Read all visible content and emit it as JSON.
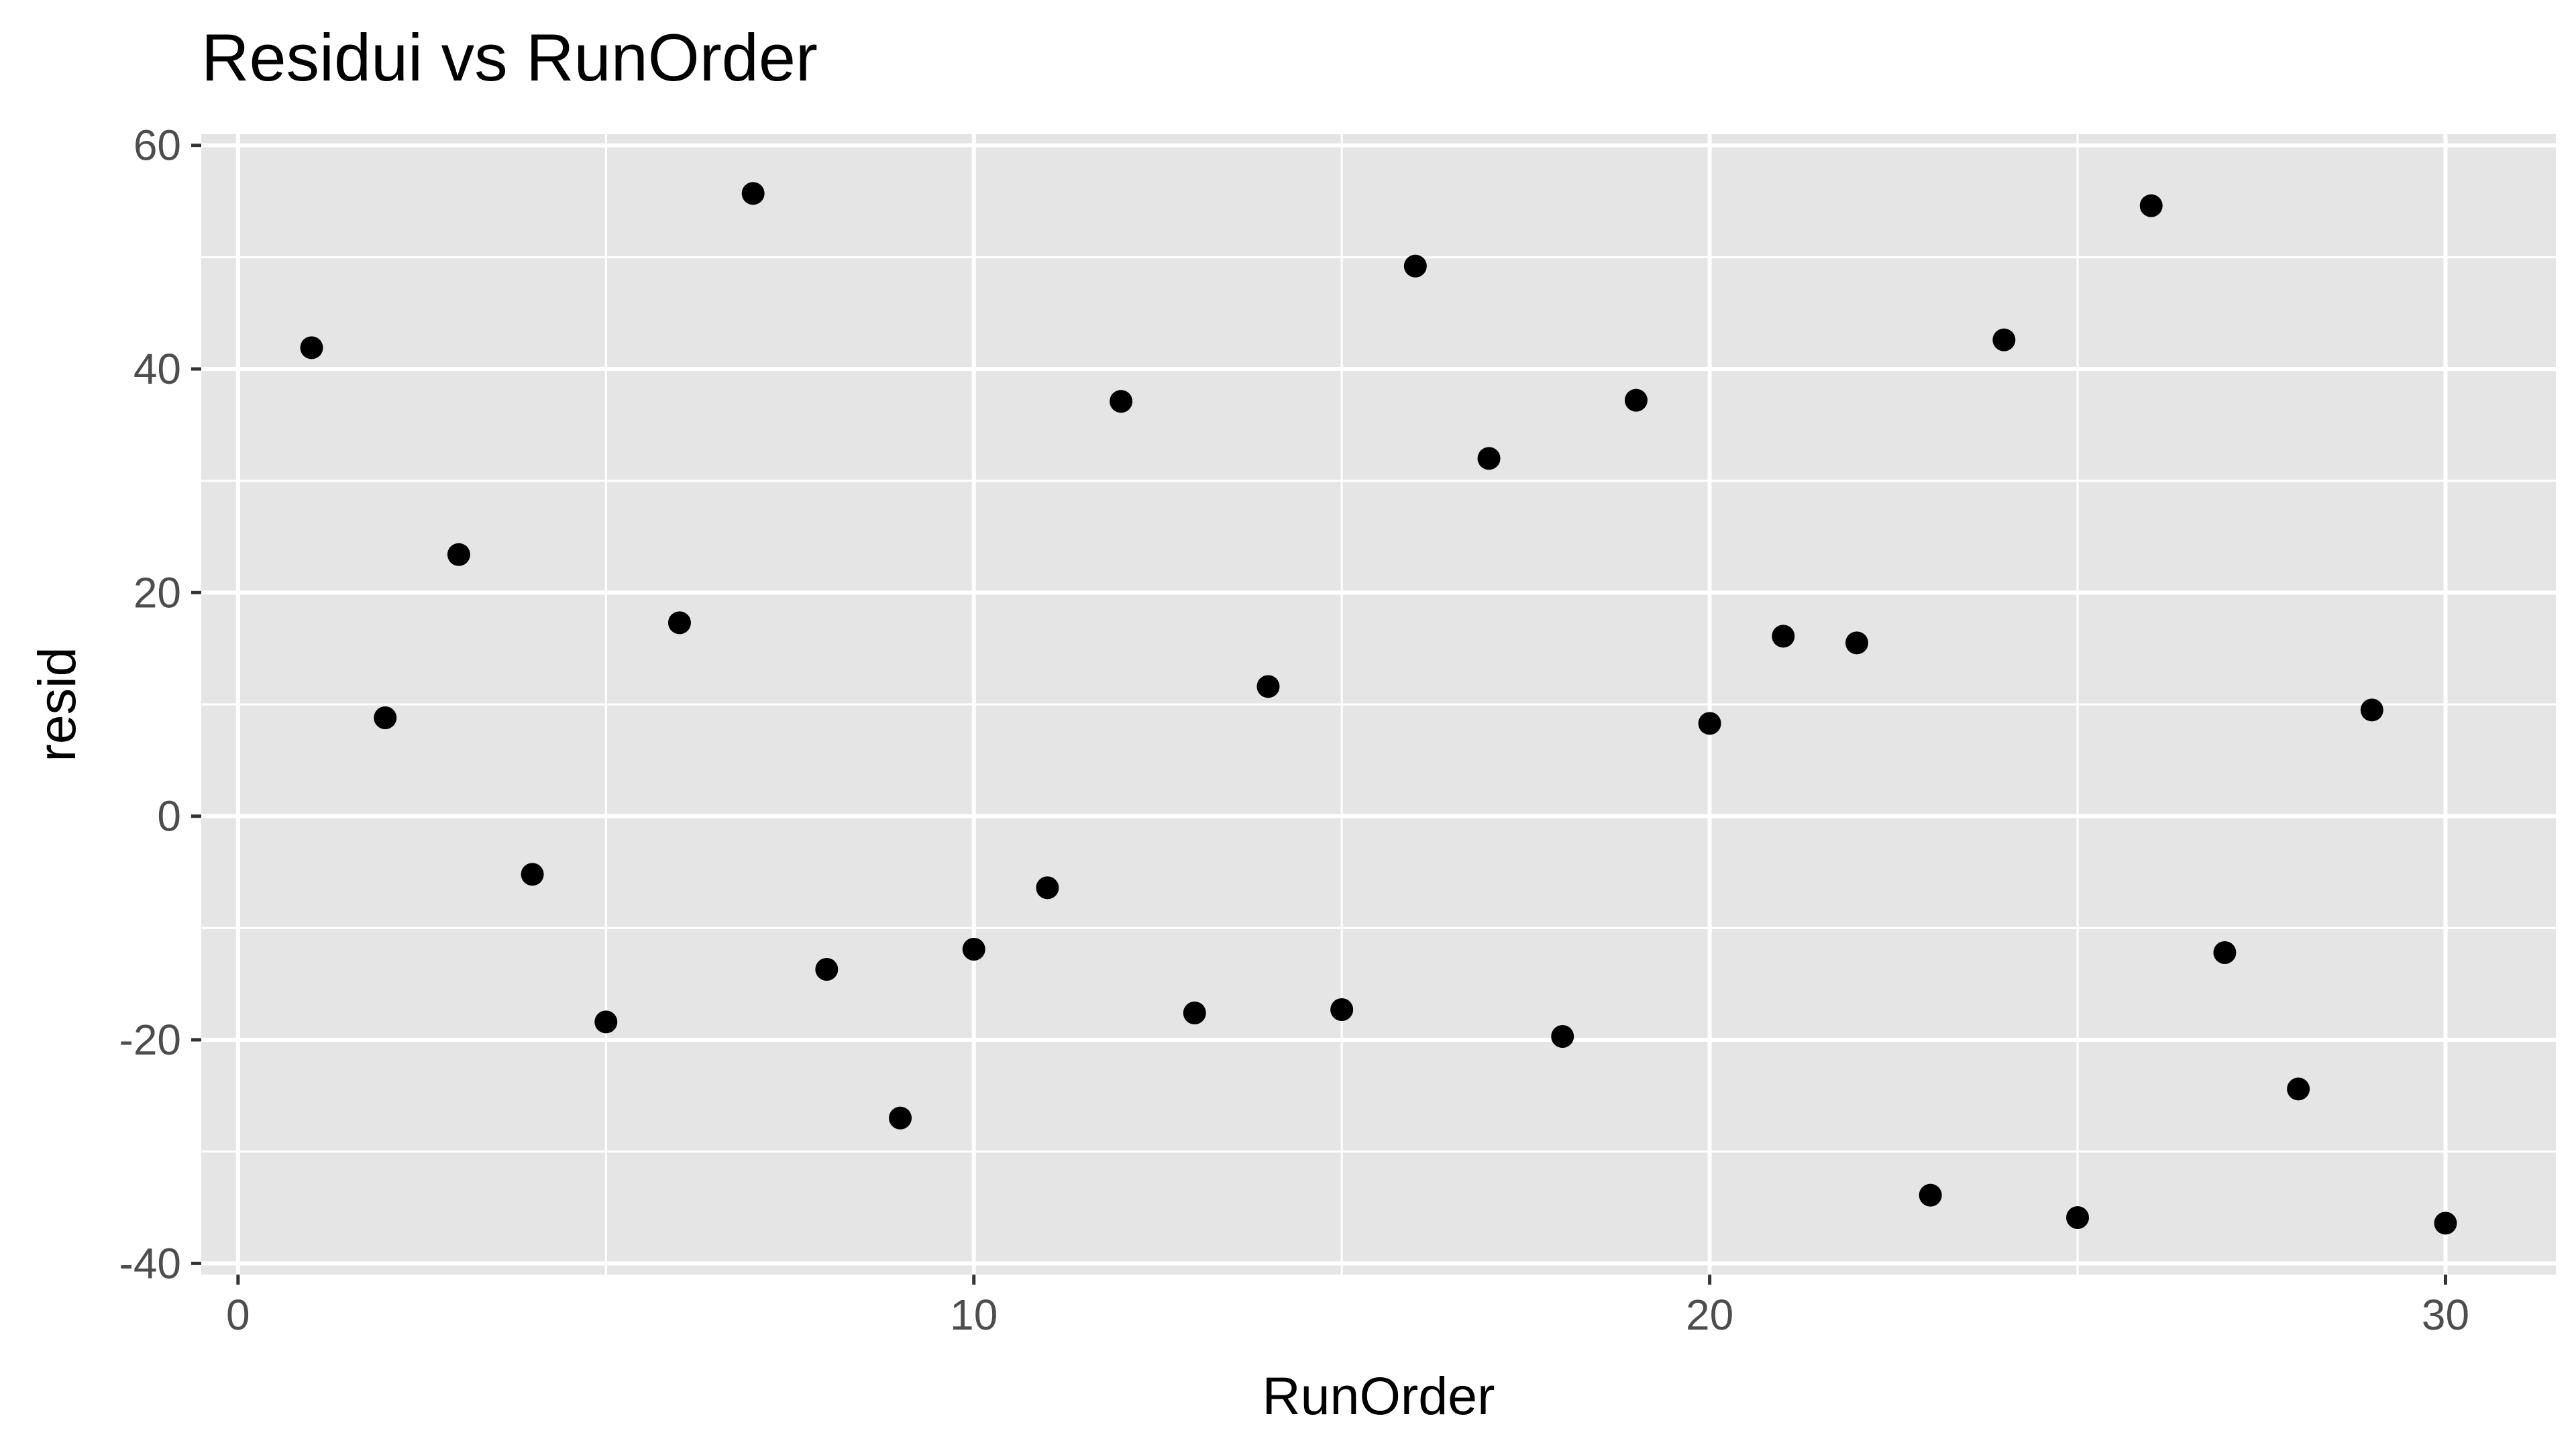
{
  "chart_data": {
    "type": "scatter",
    "title": "Residui vs RunOrder",
    "xlabel": "RunOrder",
    "ylabel": "resid",
    "xlim": [
      -0.5,
      31.5
    ],
    "ylim": [
      -41,
      61
    ],
    "x_ticks": [
      0,
      10,
      20,
      30
    ],
    "x_tick_labels": [
      "0",
      "10",
      "20",
      "30"
    ],
    "y_ticks": [
      -40,
      -20,
      0,
      20,
      40,
      60
    ],
    "y_tick_labels": [
      "-40",
      "-20",
      "0",
      "20",
      "40",
      "60"
    ],
    "grid": true,
    "panel_background": "#e5e5e5",
    "grid_color": "#ffffff",
    "point_color": "#000000",
    "points": [
      {
        "x": 1,
        "y": 41.9
      },
      {
        "x": 2,
        "y": 8.8
      },
      {
        "x": 3,
        "y": 23.4
      },
      {
        "x": 4,
        "y": -5.2
      },
      {
        "x": 5,
        "y": -18.4
      },
      {
        "x": 6,
        "y": 17.3
      },
      {
        "x": 7,
        "y": 55.7
      },
      {
        "x": 8,
        "y": -13.7
      },
      {
        "x": 9,
        "y": -27.0
      },
      {
        "x": 10,
        "y": -11.9
      },
      {
        "x": 11,
        "y": -6.4
      },
      {
        "x": 12,
        "y": 37.1
      },
      {
        "x": 13,
        "y": -17.6
      },
      {
        "x": 14,
        "y": 11.6
      },
      {
        "x": 15,
        "y": -17.3
      },
      {
        "x": 16,
        "y": 49.2
      },
      {
        "x": 17,
        "y": 32.0
      },
      {
        "x": 18,
        "y": -19.7
      },
      {
        "x": 19,
        "y": 37.2
      },
      {
        "x": 20,
        "y": 8.3
      },
      {
        "x": 21,
        "y": 16.1
      },
      {
        "x": 22,
        "y": 15.5
      },
      {
        "x": 23,
        "y": -33.9
      },
      {
        "x": 24,
        "y": 42.6
      },
      {
        "x": 25,
        "y": -35.9
      },
      {
        "x": 26,
        "y": 54.6
      },
      {
        "x": 27,
        "y": -12.2
      },
      {
        "x": 28,
        "y": -24.4
      },
      {
        "x": 29,
        "y": 9.5
      },
      {
        "x": 30,
        "y": -36.4
      }
    ]
  }
}
